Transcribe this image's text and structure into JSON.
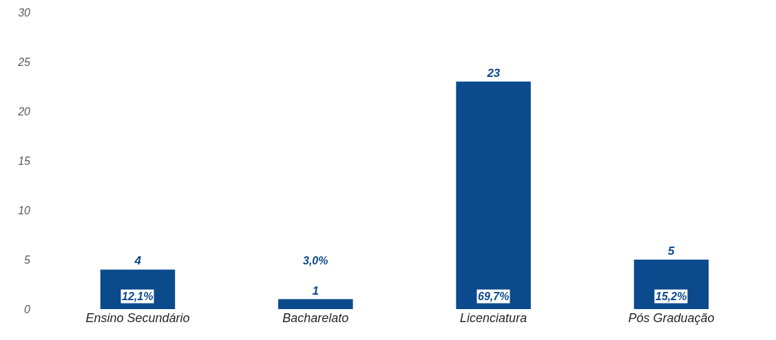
{
  "chart_data": {
    "type": "bar",
    "categories": [
      "Ensino Secundário",
      "Bacharelato",
      "Licenciatura",
      "Pós Graduação"
    ],
    "values": [
      4,
      1,
      23,
      5
    ],
    "color": "#0b4a8c",
    "ylim": [
      0,
      30
    ],
    "yticks": [
      0,
      5,
      10,
      15,
      20,
      25,
      30
    ],
    "grid": false,
    "data_labels": true,
    "annotations": [
      "12,1%",
      "3,0%",
      "69,7%",
      "15,2%"
    ]
  }
}
